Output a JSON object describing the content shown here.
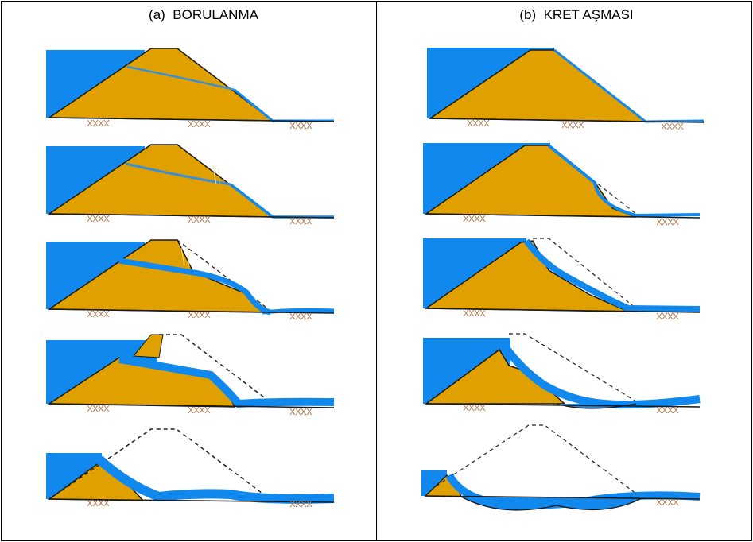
{
  "figure": {
    "panels": [
      {
        "id": "a",
        "title": "(a)  BORULANMA"
      },
      {
        "id": "b",
        "title": "(b)  KRET AŞMASI"
      }
    ],
    "colors": {
      "water": "#1188EE",
      "embankment": "#E0A000",
      "outline": "#1A1A1A",
      "foundation_marks": "#B07850",
      "dashed_profile": "#222222",
      "frame": "#000000"
    },
    "stages_per_panel": 5
  }
}
